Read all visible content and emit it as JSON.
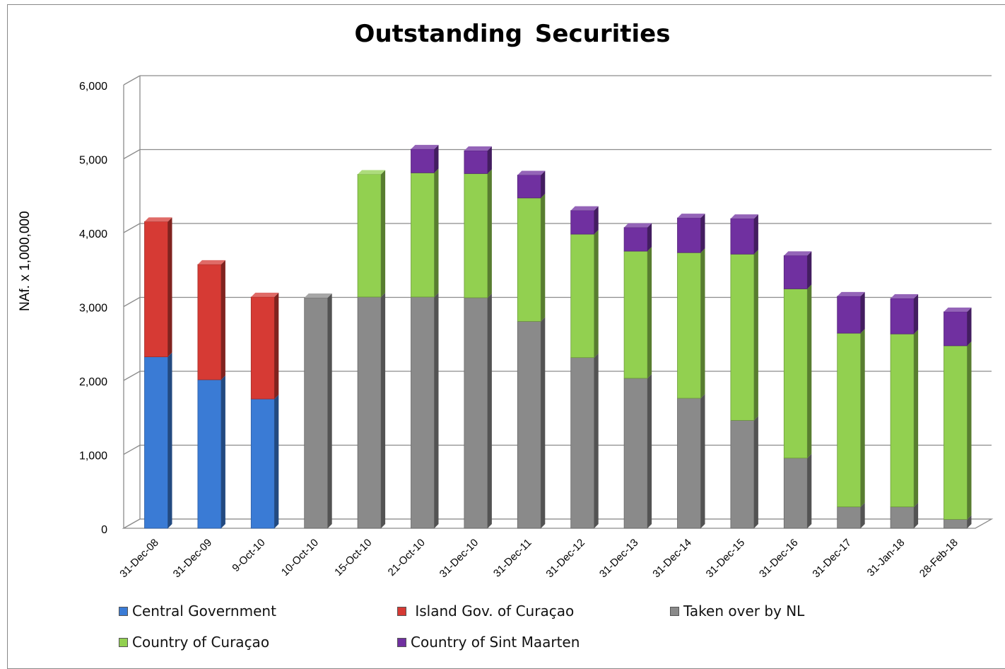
{
  "chart_data": {
    "type": "bar",
    "stacked": true,
    "title": "Outstanding  Securities",
    "ylabel": "NAf. x 1,000,000",
    "xlabel": "",
    "ylim": [
      0,
      6000
    ],
    "yticks": [
      "0",
      "1,000",
      "2,000",
      "3,000",
      "4,000",
      "5,000",
      "6,000"
    ],
    "ytick_values": [
      0,
      1000,
      2000,
      3000,
      4000,
      5000,
      6000
    ],
    "grid": true,
    "legend_position": "bottom",
    "categories": [
      "31-Dec-08",
      "31-Dec-09",
      "9-Oct-10",
      "10-Oct-10",
      "15-Oct-10",
      "21-Oct-10",
      "31-Dec-10",
      "31-Dec-11",
      "31-Dec-12",
      "31-Dec-13",
      "31-Dec-14",
      "31-Dec-15",
      "31-Dec-16",
      "31-Dec-17",
      "31-Jan-18",
      "28-Feb-18"
    ],
    "series": [
      {
        "name": "Central Government",
        "color": "#3a7bd5",
        "values": [
          2320,
          2010,
          1750,
          0,
          0,
          0,
          0,
          0,
          0,
          0,
          0,
          0,
          0,
          0,
          0,
          0
        ]
      },
      {
        "name": "Island Gov. of Curaçao",
        "color": "#d63a34",
        "values": [
          1830,
          1560,
          1380,
          0,
          0,
          0,
          0,
          0,
          0,
          0,
          0,
          0,
          0,
          0,
          0,
          0
        ]
      },
      {
        "name": "Taken over by NL",
        "color": "#8a8a8a",
        "values": [
          0,
          0,
          0,
          3120,
          3130,
          3130,
          3120,
          2800,
          2310,
          2030,
          1760,
          1460,
          950,
          290,
          290,
          120
        ]
      },
      {
        "name": "Country of Curaçao",
        "color": "#92d050",
        "values": [
          0,
          0,
          0,
          0,
          1660,
          1680,
          1680,
          1670,
          1670,
          1720,
          1970,
          2250,
          2290,
          2350,
          2340,
          2350
        ]
      },
      {
        "name": "Country of Sint Maarten",
        "color": "#7030a0",
        "values": [
          0,
          0,
          0,
          0,
          0,
          320,
          310,
          310,
          320,
          320,
          470,
          480,
          450,
          500,
          480,
          460
        ]
      }
    ]
  },
  "legend": [
    {
      "label": "Central Government",
      "color": "#3a7bd5"
    },
    {
      "label": " Island Gov. of Curaçao",
      "color": "#d63a34"
    },
    {
      "label": "Taken over by NL",
      "color": "#8a8a8a"
    },
    {
      "label": "Country of Curaçao",
      "color": "#92d050"
    },
    {
      "label": "Country of Sint Maarten",
      "color": "#7030a0"
    }
  ]
}
